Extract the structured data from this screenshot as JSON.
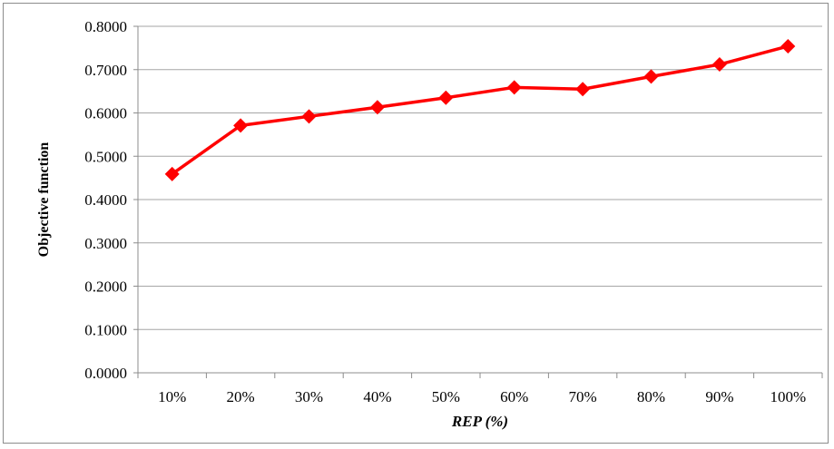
{
  "chart_data": {
    "type": "line",
    "xlabel": "REP (%)",
    "ylabel": "Objective function",
    "categories": [
      "10%",
      "20%",
      "30%",
      "40%",
      "50%",
      "60%",
      "70%",
      "80%",
      "90%",
      "100%"
    ],
    "series": [
      {
        "values": [
          0.459,
          0.571,
          0.592,
          0.613,
          0.635,
          0.659,
          0.655,
          0.684,
          0.712,
          0.754
        ],
        "color": "#ff0000",
        "marker": "diamond"
      }
    ],
    "ylim": [
      0,
      0.8
    ],
    "yticks": [
      "0.0000",
      "0.1000",
      "0.2000",
      "0.3000",
      "0.4000",
      "0.5000",
      "0.6000",
      "0.7000",
      "0.8000"
    ],
    "grid": true,
    "gridline_color": "#a6a6a6"
  }
}
